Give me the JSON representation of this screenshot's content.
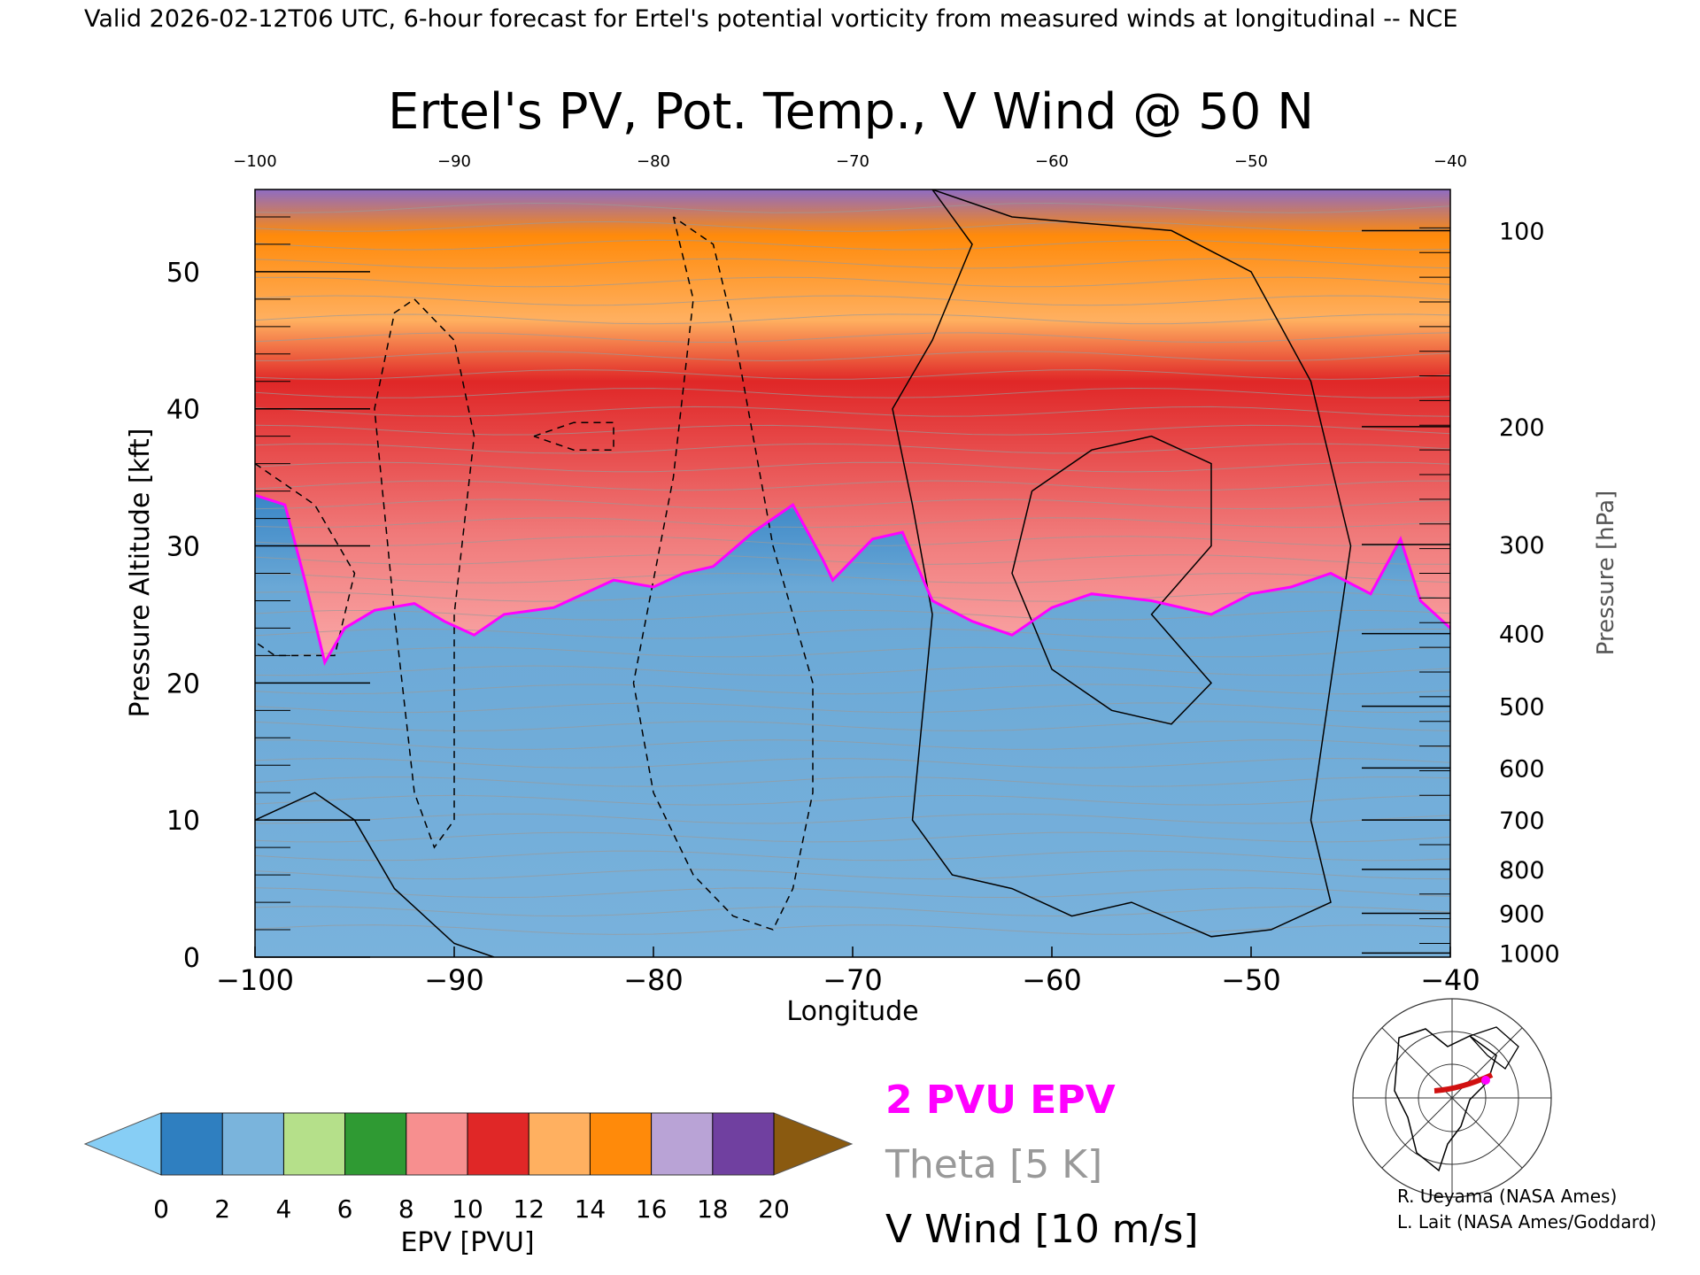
{
  "header": {
    "valid_line": "Valid 2026-02-12T06 UTC, 6-hour forecast for Ertel's potential vorticity from measured winds at longitudinal -- NCE"
  },
  "chart_data": {
    "type": "heatmap",
    "title": "Ertel's PV, Pot. Temp., V Wind @ 50 N",
    "xlabel": "Longitude",
    "ylabel_left": "Pressure Altitude [kft]",
    "ylabel_right": "Pressure [hPa]",
    "xlim": [
      -100,
      -40
    ],
    "ylim_kft": [
      0,
      56
    ],
    "x_ticks": [
      "−100",
      "−90",
      "−80",
      "−70",
      "−60",
      "−50",
      "−40"
    ],
    "x_tick_values": [
      -100,
      -90,
      -80,
      -70,
      -60,
      -50,
      -40
    ],
    "top_ticks": [
      "−100",
      "−90",
      "−80",
      "−70",
      "−60",
      "−50",
      "−40"
    ],
    "y_ticks_left": [
      "0",
      "10",
      "20",
      "30",
      "40",
      "50"
    ],
    "y_tick_values_left": [
      0,
      10,
      20,
      30,
      40,
      50
    ],
    "y_ticks_right": [
      "100",
      "200",
      "300",
      "400",
      "500",
      "600",
      "700",
      "800",
      "900",
      "1000"
    ],
    "y_tick_values_right_kft": [
      53,
      38.7,
      30.1,
      23.6,
      18.3,
      13.8,
      10,
      6.4,
      3.2,
      0.3
    ],
    "colorbar": {
      "label": "EPV [PVU]",
      "ticks": [
        "0",
        "2",
        "4",
        "6",
        "8",
        "10",
        "12",
        "14",
        "16",
        "18",
        "20"
      ],
      "colors": [
        "#2f7fc0",
        "#7ab4dc",
        "#b5e08a",
        "#2f9a33",
        "#f78f8f",
        "#e02727",
        "#ffb060",
        "#ff8a0a",
        "#b9a3d6",
        "#7040a0",
        "#f5f09a"
      ],
      "under_color": "#87cef5",
      "over_color": "#8a5a10"
    },
    "surfaces": {
      "tropopause_2pvu_kft": [
        [
          -100,
          33.7
        ],
        [
          -98.5,
          33
        ],
        [
          -97.5,
          27.5
        ],
        [
          -96.5,
          21.5
        ],
        [
          -95.5,
          24
        ],
        [
          -94,
          25.3
        ],
        [
          -92,
          25.8
        ],
        [
          -90.5,
          24.5
        ],
        [
          -89,
          23.5
        ],
        [
          -87.5,
          25
        ],
        [
          -85,
          25.5
        ],
        [
          -82,
          27.5
        ],
        [
          -80,
          27
        ],
        [
          -78.5,
          28
        ],
        [
          -77,
          28.5
        ],
        [
          -75,
          31
        ],
        [
          -73,
          33
        ],
        [
          -71.5,
          29
        ],
        [
          -71,
          27.5
        ],
        [
          -69,
          30.5
        ],
        [
          -67.5,
          31
        ],
        [
          -66,
          26
        ],
        [
          -64,
          24.5
        ],
        [
          -62,
          23.5
        ],
        [
          -60,
          25.5
        ],
        [
          -58,
          26.5
        ],
        [
          -55,
          26
        ],
        [
          -52,
          25
        ],
        [
          -50,
          26.5
        ],
        [
          -48,
          27
        ],
        [
          -46,
          28
        ],
        [
          -44,
          26.5
        ],
        [
          -42.5,
          30.5
        ],
        [
          -41.5,
          26
        ],
        [
          -40,
          24
        ]
      ]
    },
    "legend": [
      {
        "label": "2 PVU EPV",
        "color": "#ff00ff"
      },
      {
        "label": "Theta [5 K]",
        "color": "#999999"
      },
      {
        "label": "V Wind [10 m/s]",
        "color": "#000000"
      }
    ]
  },
  "credits": [
    "R. Ueyama (NASA Ames)",
    "L. Lait (NASA Ames/Goddard)"
  ],
  "colors": {
    "tropopause": "#ff00ff",
    "theta": "#9a9a9a",
    "wind": "#000000"
  }
}
